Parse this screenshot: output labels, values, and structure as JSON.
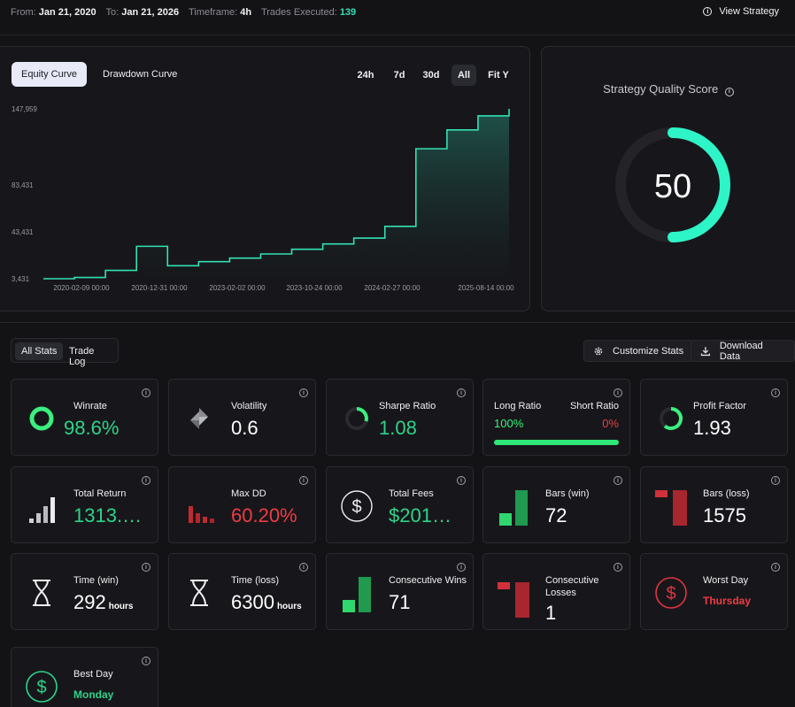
{
  "topbar": {
    "from_label": "From:",
    "from_value": "Jan 21, 2020",
    "to_label": "To:",
    "to_value": "Jan 21, 2026",
    "timeframe_label": "Timeframe:",
    "timeframe_value": "4h",
    "trades_label": "Trades Executed:",
    "trades_value": "139",
    "view_strategy": "View Strategy"
  },
  "chart_tabs": {
    "equity": "Equity Curve",
    "drawdown": "Drawdown Curve"
  },
  "ranges": {
    "r24h": "24h",
    "r7d": "7d",
    "r30d": "30d",
    "all": "All",
    "fity": "Fit Y"
  },
  "chart_data": {
    "type": "area",
    "title": "Equity Curve",
    "y_ticks": [
      "147,959",
      "83,431",
      "43,431",
      "3,431"
    ],
    "x_ticks": [
      "2020-02-09 00:00",
      "2020-12-31 00:00",
      "2023-02-02 00:00",
      "2023-10-24 00:00",
      "2024-02-27 00:00",
      "2025-08-14 00:00"
    ],
    "series_step_values": [
      3431,
      4500,
      10500,
      31000,
      14500,
      18000,
      21000,
      24500,
      28500,
      33000,
      38000,
      48000,
      114000,
      130000,
      142000
    ],
    "final_value": 147959,
    "ylim": [
      3431,
      147959
    ],
    "color": "#34e0b4"
  },
  "score": {
    "title": "Strategy Quality Score",
    "value": "50",
    "fraction": 0.5,
    "color": "#2ef5c8"
  },
  "tabs": {
    "all_stats": "All Stats",
    "trade_log": "Trade Log"
  },
  "actions": {
    "customize": "Customize Stats",
    "download": "Download Data"
  },
  "stats": {
    "winrate": {
      "label": "Winrate",
      "value": "98.6%"
    },
    "volatility": {
      "label": "Volatility",
      "value": "0.6"
    },
    "sharpe": {
      "label": "Sharpe Ratio",
      "value": "1.08"
    },
    "long_ratio": {
      "long_label": "Long Ratio",
      "short_label": "Short Ratio",
      "long_value": "100%",
      "short_value": "0%"
    },
    "profit_factor": {
      "label": "Profit Factor",
      "value": "1.93"
    },
    "total_return": {
      "label": "Total Return",
      "value": "1313.…"
    },
    "max_dd": {
      "label": "Max DD",
      "value": "60.20%"
    },
    "total_fees": {
      "label": "Total Fees",
      "value": "$201…"
    },
    "bars_win": {
      "label": "Bars (win)",
      "value": "72"
    },
    "bars_loss": {
      "label": "Bars (loss)",
      "value": "1575"
    },
    "time_win": {
      "label": "Time (win)",
      "value": "292",
      "unit": "hours"
    },
    "time_loss": {
      "label": "Time (loss)",
      "value": "6300",
      "unit": "hours"
    },
    "consec_wins": {
      "label": "Consecutive Wins",
      "value": "71"
    },
    "consec_losses": {
      "label_l1": "Consecutive",
      "label_l2": "Losses",
      "value": "1"
    },
    "worst_day": {
      "label": "Worst Day",
      "value": "Thursday"
    },
    "best_day": {
      "label": "Best Day",
      "value": "Monday"
    }
  }
}
